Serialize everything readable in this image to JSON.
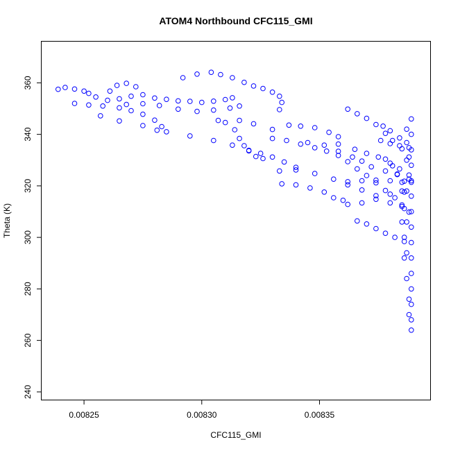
{
  "chart_data": {
    "type": "scatter",
    "title": "ATOM4 Northbound CFC115_GMI",
    "xlabel": "CFC115_GMI",
    "ylabel": "Theta (K)",
    "xlim": [
      0.008232,
      0.008397
    ],
    "ylim": [
      237,
      376
    ],
    "x_ticks": [
      0.00825,
      0.0083,
      0.00835
    ],
    "x_tick_labels": [
      "0.00825",
      "0.00830",
      "0.00835"
    ],
    "y_ticks": [
      240,
      260,
      280,
      300,
      320,
      340,
      360
    ],
    "y_tick_labels": [
      "240",
      "260",
      "280",
      "300",
      "320",
      "340",
      "360"
    ],
    "marker": "open-circle",
    "color": "#0000ff",
    "grid": false,
    "series": [
      {
        "values": [
          [
            0.008239,
            357.5
          ],
          [
            0.008242,
            358.2
          ],
          [
            0.008246,
            357.6
          ],
          [
            0.00825,
            356.8
          ],
          [
            0.008252,
            355.9
          ],
          [
            0.008255,
            354.5
          ],
          [
            0.00826,
            353.2
          ],
          [
            0.008265,
            353.8
          ],
          [
            0.00827,
            354.8
          ],
          [
            0.008275,
            355.4
          ],
          [
            0.00828,
            354.1
          ],
          [
            0.008285,
            353.6
          ],
          [
            0.00829,
            353.0
          ],
          [
            0.008295,
            352.8
          ],
          [
            0.0083,
            352.4
          ],
          [
            0.008305,
            352.9
          ],
          [
            0.00831,
            353.5
          ],
          [
            0.008313,
            354.2
          ],
          [
            0.008246,
            352.0
          ],
          [
            0.008252,
            351.4
          ],
          [
            0.008258,
            351.0
          ],
          [
            0.008265,
            350.3
          ],
          [
            0.00827,
            349.2
          ],
          [
            0.008275,
            347.8
          ],
          [
            0.00828,
            345.5
          ],
          [
            0.008283,
            343.0
          ],
          [
            0.008281,
            341.6
          ],
          [
            0.008261,
            356.8
          ],
          [
            0.008264,
            359.0
          ],
          [
            0.008268,
            359.8
          ],
          [
            0.008272,
            358.5
          ],
          [
            0.008268,
            351.6
          ],
          [
            0.008275,
            351.9
          ],
          [
            0.008282,
            351.2
          ],
          [
            0.00829,
            349.8
          ],
          [
            0.008298,
            348.9
          ],
          [
            0.008305,
            349.4
          ],
          [
            0.008312,
            350.2
          ],
          [
            0.008316,
            351.0
          ],
          [
            0.008292,
            362.0
          ],
          [
            0.008298,
            363.4
          ],
          [
            0.008304,
            364.1
          ],
          [
            0.008308,
            363.2
          ],
          [
            0.008313,
            362.0
          ],
          [
            0.008318,
            360.2
          ],
          [
            0.008322,
            358.8
          ],
          [
            0.008326,
            357.8
          ],
          [
            0.00833,
            356.4
          ],
          [
            0.008333,
            354.8
          ],
          [
            0.008334,
            352.4
          ],
          [
            0.008333,
            349.6
          ],
          [
            0.008257,
            347.2
          ],
          [
            0.008265,
            345.2
          ],
          [
            0.008275,
            343.4
          ],
          [
            0.008285,
            341.0
          ],
          [
            0.008295,
            339.4
          ],
          [
            0.008305,
            337.6
          ],
          [
            0.008313,
            335.8
          ],
          [
            0.00832,
            333.6
          ],
          [
            0.008325,
            332.6
          ],
          [
            0.00833,
            331.2
          ],
          [
            0.008335,
            329.3
          ],
          [
            0.00834,
            327.2
          ],
          [
            0.008307,
            345.4
          ],
          [
            0.00831,
            344.6
          ],
          [
            0.008314,
            341.8
          ],
          [
            0.008316,
            338.4
          ],
          [
            0.008318,
            335.6
          ],
          [
            0.00832,
            333.8
          ],
          [
            0.008323,
            331.4
          ],
          [
            0.008326,
            330.6
          ],
          [
            0.008316,
            345.4
          ],
          [
            0.008322,
            344.1
          ],
          [
            0.00833,
            341.9
          ],
          [
            0.008337,
            343.6
          ],
          [
            0.008342,
            343.2
          ],
          [
            0.008348,
            342.6
          ],
          [
            0.008354,
            340.8
          ],
          [
            0.008358,
            339.1
          ],
          [
            0.00833,
            338.4
          ],
          [
            0.008336,
            337.6
          ],
          [
            0.008342,
            336.2
          ],
          [
            0.008348,
            334.8
          ],
          [
            0.008353,
            333.5
          ],
          [
            0.008358,
            331.8
          ],
          [
            0.008362,
            329.4
          ],
          [
            0.008366,
            326.6
          ],
          [
            0.00837,
            324.0
          ],
          [
            0.008374,
            321.2
          ],
          [
            0.008378,
            318.2
          ],
          [
            0.008382,
            315.4
          ],
          [
            0.008385,
            312.6
          ],
          [
            0.008388,
            309.8
          ],
          [
            0.008334,
            320.8
          ],
          [
            0.00834,
            320.4
          ],
          [
            0.008346,
            319.2
          ],
          [
            0.008352,
            317.6
          ],
          [
            0.008356,
            315.4
          ],
          [
            0.00836,
            314.4
          ],
          [
            0.008333,
            325.8
          ],
          [
            0.00834,
            326.2
          ],
          [
            0.008348,
            324.8
          ],
          [
            0.008356,
            322.6
          ],
          [
            0.008362,
            320.4
          ],
          [
            0.008368,
            318.4
          ],
          [
            0.008374,
            316.2
          ],
          [
            0.00838,
            313.4
          ],
          [
            0.008386,
            311.2
          ],
          [
            0.008345,
            336.8
          ],
          [
            0.008352,
            335.8
          ],
          [
            0.008358,
            333.4
          ],
          [
            0.008364,
            331.2
          ],
          [
            0.008368,
            329.6
          ],
          [
            0.008372,
            327.4
          ],
          [
            0.008378,
            325.8
          ],
          [
            0.008383,
            324.4
          ],
          [
            0.008388,
            322.6
          ],
          [
            0.008358,
            336.2
          ],
          [
            0.008365,
            334.2
          ],
          [
            0.00837,
            332.6
          ],
          [
            0.008375,
            331.2
          ],
          [
            0.00838,
            328.8
          ],
          [
            0.008384,
            326.6
          ],
          [
            0.008388,
            324.2
          ],
          [
            0.008362,
            321.6
          ],
          [
            0.008368,
            322.0
          ],
          [
            0.008374,
            322.2
          ],
          [
            0.00838,
            322.0
          ],
          [
            0.008386,
            321.8
          ],
          [
            0.008389,
            321.4
          ],
          [
            0.008362,
            312.8
          ],
          [
            0.008368,
            313.4
          ],
          [
            0.008374,
            314.8
          ],
          [
            0.00838,
            316.8
          ],
          [
            0.008386,
            317.6
          ],
          [
            0.008362,
            349.8
          ],
          [
            0.008366,
            348.0
          ],
          [
            0.00837,
            346.2
          ],
          [
            0.008374,
            343.8
          ],
          [
            0.008378,
            340.4
          ],
          [
            0.008381,
            337.6
          ],
          [
            0.008385,
            334.4
          ],
          [
            0.008388,
            331.2
          ],
          [
            0.008377,
            343.2
          ],
          [
            0.00838,
            341.4
          ],
          [
            0.008384,
            338.6
          ],
          [
            0.008387,
            336.8
          ],
          [
            0.008376,
            337.6
          ],
          [
            0.00838,
            336.4
          ],
          [
            0.008384,
            335.6
          ],
          [
            0.008388,
            334.8
          ],
          [
            0.008378,
            330.4
          ],
          [
            0.008381,
            327.8
          ],
          [
            0.008383,
            324.6
          ],
          [
            0.008385,
            321.4
          ],
          [
            0.008366,
            306.4
          ],
          [
            0.00837,
            305.2
          ],
          [
            0.008374,
            303.4
          ],
          [
            0.008378,
            301.6
          ],
          [
            0.008382,
            300.0
          ],
          [
            0.008386,
            298.4
          ],
          [
            0.008389,
            346.0
          ],
          [
            0.008389,
            340.0
          ],
          [
            0.008389,
            334.0
          ],
          [
            0.008389,
            328.0
          ],
          [
            0.008389,
            322.0
          ],
          [
            0.008389,
            316.0
          ],
          [
            0.008389,
            310.0
          ],
          [
            0.008389,
            304.0
          ],
          [
            0.008389,
            298.0
          ],
          [
            0.008389,
            292.0
          ],
          [
            0.008389,
            286.0
          ],
          [
            0.008389,
            280.0
          ],
          [
            0.008389,
            274.0
          ],
          [
            0.008389,
            268.0
          ],
          [
            0.008389,
            264.0
          ],
          [
            0.008387,
            342.0
          ],
          [
            0.008387,
            330.0
          ],
          [
            0.008387,
            318.0
          ],
          [
            0.008387,
            306.0
          ],
          [
            0.008387,
            294.0
          ],
          [
            0.008387,
            284.0
          ],
          [
            0.008388,
            276.0
          ],
          [
            0.008388,
            270.0
          ],
          [
            0.008385,
            318.0
          ],
          [
            0.008385,
            312.0
          ],
          [
            0.008385,
            306.0
          ],
          [
            0.008386,
            300.0
          ],
          [
            0.008386,
            292.0
          ]
        ]
      }
    ]
  }
}
